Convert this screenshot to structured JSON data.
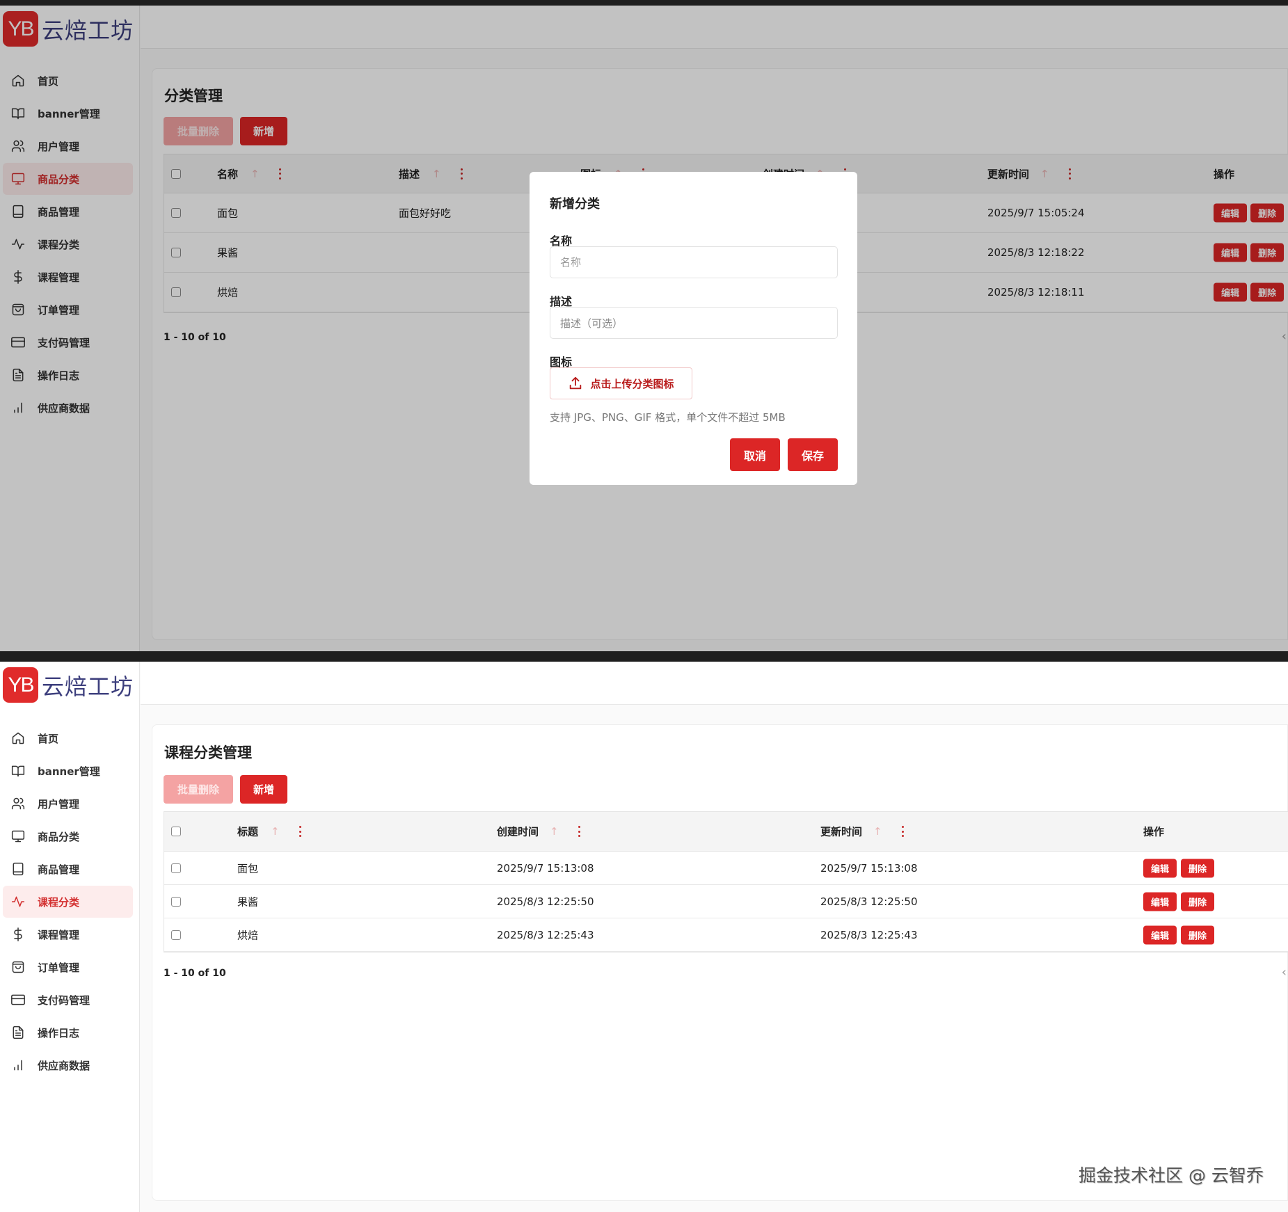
{
  "brand": {
    "logo_mark": "YB",
    "name": "云焙工坊",
    "accent": "#dc2626",
    "text_color": "#3d3f7d"
  },
  "sidebar": {
    "items": [
      {
        "label": "首页",
        "icon": "home-icon"
      },
      {
        "label": "banner管理",
        "icon": "book-icon"
      },
      {
        "label": "用户管理",
        "icon": "users-icon"
      },
      {
        "label": "商品分类",
        "icon": "monitor-icon"
      },
      {
        "label": "商品管理",
        "icon": "tablet-icon"
      },
      {
        "label": "课程分类",
        "icon": "activity-icon"
      },
      {
        "label": "课程管理",
        "icon": "dollar-icon"
      },
      {
        "label": "订单管理",
        "icon": "shopping-bag-icon"
      },
      {
        "label": "支付码管理",
        "icon": "credit-card-icon"
      },
      {
        "label": "操作日志",
        "icon": "file-text-icon"
      },
      {
        "label": "供应商数据",
        "icon": "bar-chart-icon"
      }
    ]
  },
  "screens": [
    {
      "active_nav": 3,
      "title": "分类管理",
      "bulk_delete_label": "批量删除",
      "add_label": "新增",
      "columns": [
        "名称",
        "描述",
        "图标",
        "创建时间",
        "更新时间",
        "操作"
      ],
      "rows": [
        {
          "cells": [
            "面包",
            "面包好好吃",
            "",
            "",
            "2025/9/7 15:05:24"
          ]
        },
        {
          "cells": [
            "果酱",
            "",
            "",
            "",
            "2025/8/3 12:18:22"
          ]
        },
        {
          "cells": [
            "烘焙",
            "",
            "",
            "",
            "2025/8/3 12:18:11"
          ]
        }
      ],
      "edit_label": "编辑",
      "delete_label": "删除",
      "pagination": "1 - 10 of 10"
    },
    {
      "active_nav": 5,
      "title": "课程分类管理",
      "bulk_delete_label": "批量删除",
      "add_label": "新增",
      "columns": [
        "标题",
        "创建时间",
        "更新时间",
        "操作"
      ],
      "rows": [
        {
          "cells": [
            "面包",
            "2025/9/7 15:13:08",
            "2025/9/7 15:13:08"
          ]
        },
        {
          "cells": [
            "果酱",
            "2025/8/3 12:25:50",
            "2025/8/3 12:25:50"
          ]
        },
        {
          "cells": [
            "烘焙",
            "2025/8/3 12:25:43",
            "2025/8/3 12:25:43"
          ]
        }
      ],
      "edit_label": "编辑",
      "delete_label": "删除",
      "pagination": "1 - 10 of 10"
    }
  ],
  "modal": {
    "title": "新增分类",
    "name_label": "名称",
    "name_placeholder": "名称",
    "name_value": "",
    "desc_label": "描述",
    "desc_placeholder": "描述（可选）",
    "desc_value": "",
    "icon_label": "图标",
    "upload_label": "点击上传分类图标",
    "hint": "支持 JPG、PNG、GIF 格式，单个文件不超过 5MB",
    "cancel_label": "取消",
    "save_label": "保存"
  },
  "watermark": "掘金技术社区 @ 云智乔"
}
